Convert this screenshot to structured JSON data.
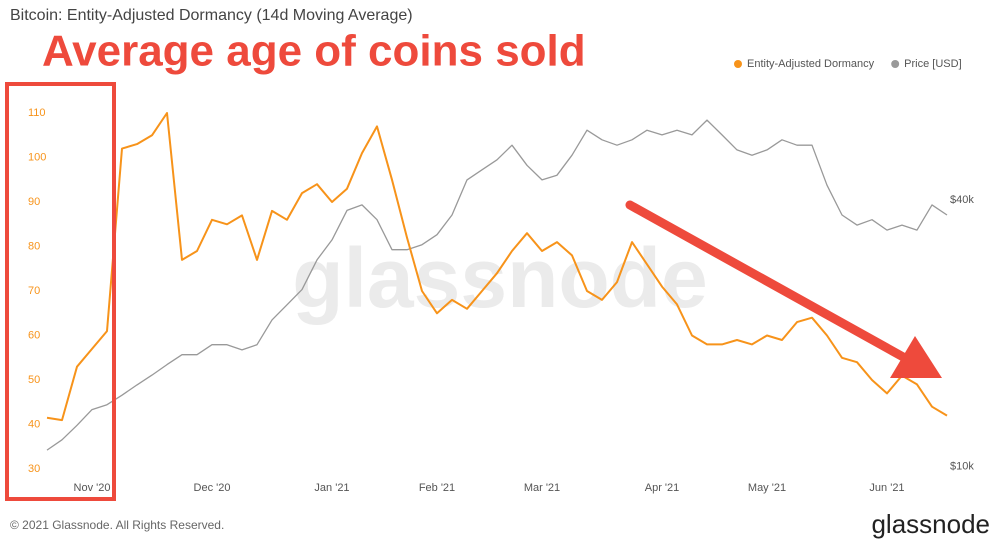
{
  "chart_data": {
    "type": "line",
    "title": "Bitcoin: Entity-Adjusted Dormancy (14d Moving Average)",
    "annotation": "Average age of coins sold",
    "watermark": "glassnode",
    "footer": "© 2021 Glassnode. All Rights Reserved.",
    "logo": "glassnode",
    "legend": "top-right",
    "grid": false,
    "categories": [
      null,
      null,
      null,
      "Nov '20",
      null,
      null,
      null,
      null,
      null,
      null,
      null,
      "Dec '20",
      null,
      null,
      null,
      null,
      null,
      null,
      null,
      "Jan '21",
      null,
      null,
      null,
      null,
      null,
      null,
      "Feb '21",
      null,
      null,
      null,
      null,
      null,
      null,
      "Mar '21",
      null,
      null,
      null,
      null,
      null,
      null,
      null,
      "Apr '21",
      null,
      null,
      null,
      null,
      null,
      null,
      "May '21",
      null,
      null,
      null,
      null,
      null,
      null,
      null,
      "Jun '21",
      null,
      null,
      null,
      null
    ],
    "ylim": [
      25,
      122
    ],
    "yticks": [
      30,
      40,
      50,
      60,
      70,
      80,
      90,
      100,
      110
    ],
    "y2lim": [
      8800,
      83000
    ],
    "y2log": true,
    "y2ticks": [
      {
        "value": 10000,
        "label": "$10k"
      },
      {
        "value": 40000,
        "label": "$40k"
      }
    ],
    "series": [
      {
        "name": "Entity-Adjusted Dormancy",
        "color": "#f7931a",
        "values": [
          41.5,
          41,
          53,
          57,
          61,
          102,
          103,
          105,
          110,
          77,
          79,
          86,
          85,
          87,
          77,
          88,
          86,
          92,
          94,
          90,
          93,
          101,
          107,
          95,
          82,
          70,
          65,
          68,
          66,
          70,
          74,
          79,
          83,
          79,
          81,
          78,
          70,
          68,
          72,
          81,
          76,
          71,
          67,
          60,
          58,
          58,
          59,
          58,
          60,
          59,
          63,
          64,
          60,
          55,
          54,
          50,
          47,
          51,
          49,
          44,
          42
        ]
      },
      {
        "name": "Price [USD]",
        "color": "#999999",
        "axis": "y2",
        "values": [
          10900,
          11500,
          12400,
          13450,
          13800,
          14500,
          15300,
          16100,
          17000,
          17900,
          17900,
          18850,
          18850,
          18350,
          18850,
          21450,
          23200,
          25100,
          29300,
          32500,
          37900,
          39000,
          36100,
          30900,
          30900,
          31700,
          33400,
          37000,
          44400,
          46800,
          49300,
          53200,
          47900,
          44400,
          45500,
          50500,
          57500,
          54700,
          53200,
          54700,
          57500,
          56100,
          57500,
          56100,
          60600,
          56100,
          51900,
          50500,
          51900,
          54700,
          53200,
          53200,
          43200,
          37000,
          35100,
          36100,
          34200,
          35100,
          34200,
          39000,
          37000
        ]
      }
    ]
  }
}
